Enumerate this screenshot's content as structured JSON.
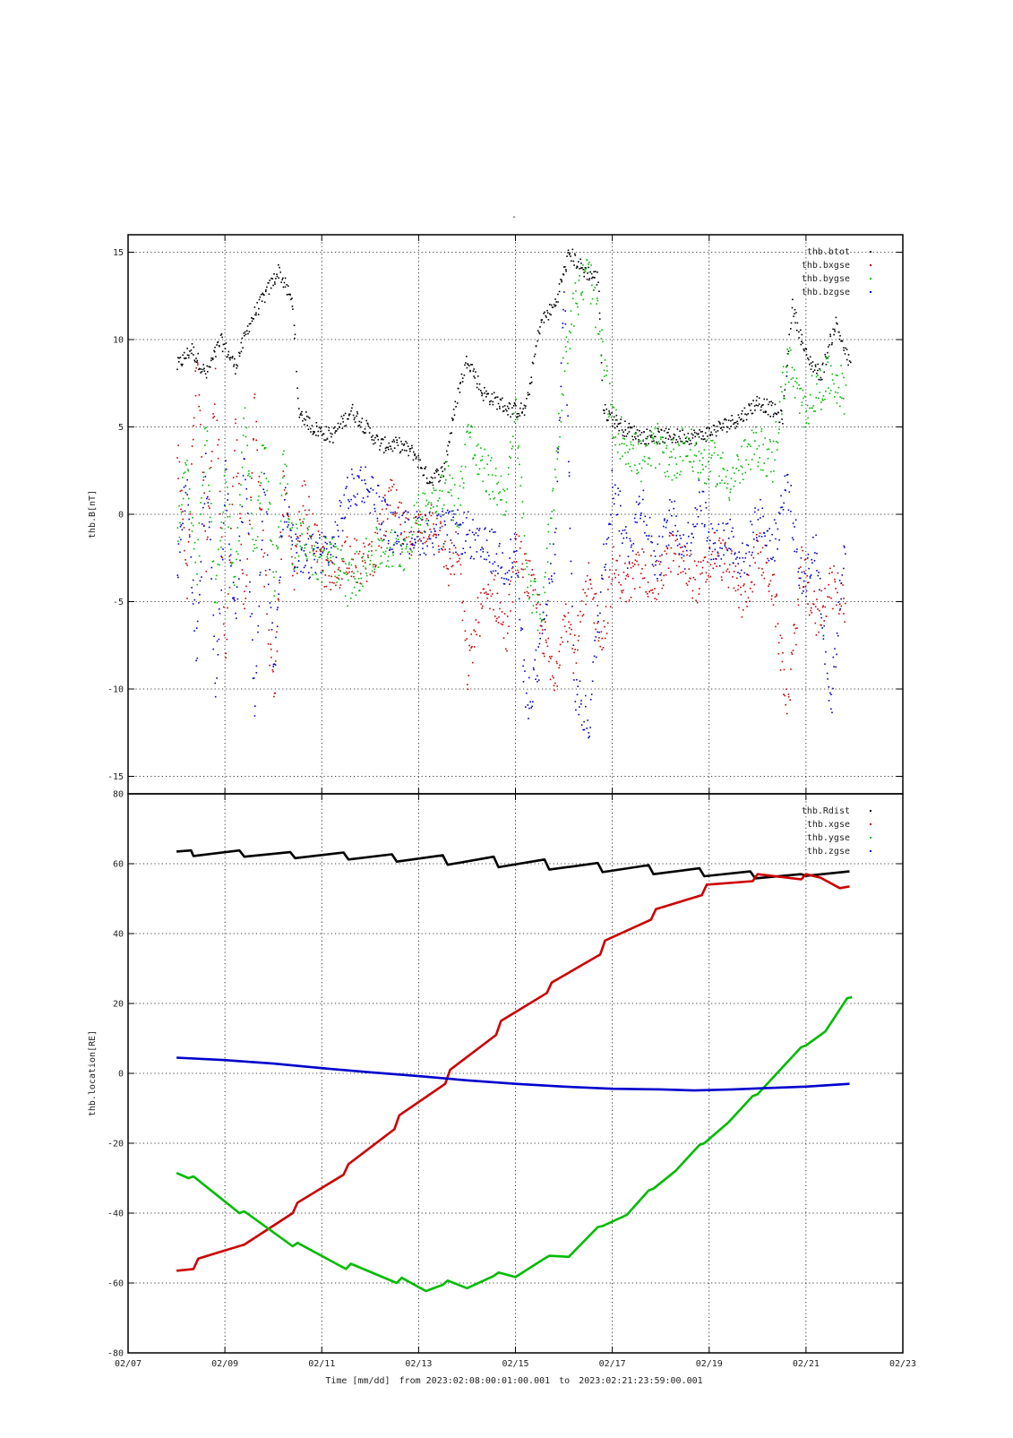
{
  "page_title": "-",
  "footer": {
    "time_label": "Time [mm/dd]",
    "from_label": "from",
    "start": "2023:02:08:00:01:00.001",
    "to_label": "to",
    "end": "2023:02:21:23:59:00.001"
  },
  "chart_data": [
    {
      "type": "scatter",
      "ylabel": "thb.B[nT]",
      "xlim": [
        "02/07",
        "02/23"
      ],
      "ylim": [
        -16,
        16
      ],
      "yticks": [
        -15,
        -10,
        -5,
        0,
        5,
        10,
        15
      ],
      "grid": true,
      "legend_position": "top-right",
      "series": [
        {
          "name": "thb.btot",
          "color": "#000000",
          "x": [
            8.0,
            8.3,
            8.6,
            8.9,
            9.2,
            9.5,
            9.8,
            10.1,
            10.4,
            10.5,
            10.8,
            11.2,
            11.6,
            11.9,
            12.2,
            12.6,
            12.9,
            13.2,
            13.5,
            13.8,
            14.0,
            14.3,
            14.6,
            14.9,
            15.2,
            15.5,
            15.8,
            16.1,
            16.4,
            16.7,
            16.8,
            17.2,
            17.6,
            18.0,
            18.4,
            18.8,
            19.2,
            19.6,
            20.0,
            20.3,
            20.5,
            20.7,
            21.0,
            21.3,
            21.6,
            21.9
          ],
          "y": [
            8.5,
            9.5,
            8,
            10,
            8.5,
            11,
            12.5,
            14,
            12,
            6,
            5,
            4.5,
            6,
            5,
            4,
            4,
            3.5,
            2,
            2.5,
            7,
            9,
            7,
            6.5,
            6,
            6,
            11,
            12,
            15,
            14,
            13.5,
            6,
            5,
            4.5,
            4.5,
            4.5,
            4.5,
            5,
            5.5,
            6.5,
            6,
            5.5,
            12,
            9,
            8,
            11,
            8.5
          ]
        },
        {
          "name": "thb.bxgse",
          "color": "#cc0000",
          "x": [
            8.0,
            8.2,
            8.4,
            8.6,
            8.8,
            9.0,
            9.2,
            9.4,
            9.6,
            9.8,
            10.0,
            10.2,
            10.4,
            10.6,
            10.9,
            11.2,
            11.5,
            11.8,
            12.1,
            12.4,
            12.7,
            13.0,
            13.3,
            13.6,
            13.8,
            14.0,
            14.2,
            14.5,
            14.8,
            15.0,
            15.3,
            15.5,
            15.8,
            16.0,
            16.2,
            16.5,
            16.8,
            17.0,
            17.3,
            17.6,
            17.9,
            18.2,
            18.5,
            18.8,
            19.1,
            19.4,
            19.7,
            20.0,
            20.3,
            20.6,
            20.9,
            21.2,
            21.5,
            21.8
          ],
          "y": [
            4,
            -4,
            9,
            -2,
            8,
            -9,
            5,
            -6,
            7,
            -3,
            -11,
            2,
            -4,
            1,
            -2,
            -4,
            -2,
            -3,
            -2,
            1,
            -1,
            -1,
            0,
            -3,
            -2,
            -9,
            -6,
            -4,
            -7,
            -2,
            -4,
            -6,
            -10,
            -5,
            -8,
            -4,
            -7,
            -3,
            -4,
            -3,
            -4,
            -2,
            -3,
            -4,
            -2,
            -3,
            -5,
            -2,
            -4,
            -11,
            -3,
            -6,
            -4,
            -5
          ]
        },
        {
          "name": "thb.bygse",
          "color": "#00bb00",
          "x": [
            8.0,
            8.2,
            8.4,
            8.6,
            8.8,
            9.0,
            9.2,
            9.4,
            9.6,
            9.8,
            10.0,
            10.2,
            10.4,
            10.6,
            10.9,
            11.2,
            11.5,
            11.8,
            12.1,
            12.4,
            12.7,
            13.0,
            13.3,
            13.6,
            13.8,
            14.0,
            14.2,
            14.5,
            14.8,
            15.0,
            15.2,
            15.5,
            15.8,
            16.0,
            16.2,
            16.5,
            16.8,
            17.0,
            17.3,
            17.6,
            17.9,
            18.2,
            18.5,
            18.8,
            19.1,
            19.4,
            19.7,
            20.0,
            20.3,
            20.6,
            20.9,
            21.2,
            21.5,
            21.8
          ],
          "y": [
            -1,
            3,
            -4,
            5,
            -5,
            2,
            -4,
            6,
            -3,
            5,
            -4,
            3,
            -2,
            -1,
            -3,
            -2,
            -4,
            -3,
            -2,
            -2,
            -2,
            0,
            1,
            2,
            0,
            5,
            3,
            2,
            1,
            6,
            -3,
            -6,
            2,
            9,
            12,
            14,
            9,
            5,
            4,
            3,
            4,
            3,
            4,
            3,
            3,
            2,
            3,
            4,
            3,
            9,
            6,
            7,
            8,
            7
          ]
        },
        {
          "name": "thb.bzgse",
          "color": "#0000cc",
          "x": [
            8.0,
            8.2,
            8.4,
            8.6,
            8.8,
            9.0,
            9.2,
            9.4,
            9.6,
            9.8,
            10.0,
            10.2,
            10.4,
            10.6,
            10.9,
            11.2,
            11.5,
            11.8,
            12.1,
            12.4,
            12.7,
            13.0,
            13.3,
            13.6,
            13.8,
            14.0,
            14.2,
            14.5,
            14.8,
            15.0,
            15.2,
            15.5,
            15.8,
            16.0,
            16.2,
            16.5,
            16.8,
            17.0,
            17.3,
            17.6,
            17.9,
            18.2,
            18.5,
            18.8,
            19.1,
            19.4,
            19.7,
            20.0,
            20.3,
            20.6,
            20.9,
            21.2,
            21.5,
            21.8
          ],
          "y": [
            -3,
            2,
            -8,
            3,
            -10,
            2,
            -6,
            3,
            -11,
            2,
            -9,
            1,
            -2,
            -3,
            -2,
            -2,
            1,
            2,
            1,
            -1,
            -1,
            -1,
            -1,
            -1,
            -1,
            -1,
            -2,
            -2,
            -3,
            -2,
            -11,
            -8,
            -2,
            13,
            -10,
            -12,
            -3,
            2,
            -2,
            1,
            -3,
            0,
            -2,
            1,
            -2,
            -1,
            -3,
            0,
            -2,
            2,
            -4,
            -2,
            -11,
            -1
          ]
        }
      ]
    },
    {
      "type": "line",
      "ylabel": "thb.location[RE]",
      "xlim": [
        "02/07",
        "02/23"
      ],
      "ylim": [
        -80,
        80
      ],
      "yticks": [
        -80,
        -60,
        -40,
        -20,
        0,
        20,
        40,
        60,
        80
      ],
      "xticks": [
        "02/07",
        "02/09",
        "02/11",
        "02/13",
        "02/15",
        "02/17",
        "02/19",
        "02/21",
        "02/23"
      ],
      "grid": true,
      "legend_position": "top-right",
      "series": [
        {
          "name": "thb.Rdist",
          "color": "#000000",
          "x": [
            8.0,
            8.3,
            8.35,
            9.3,
            9.4,
            10.35,
            10.45,
            11.45,
            11.55,
            12.45,
            12.55,
            13.5,
            13.6,
            14.55,
            14.65,
            15.6,
            15.7,
            16.7,
            16.8,
            17.75,
            17.85,
            18.8,
            18.9,
            19.85,
            19.95,
            20.9,
            21.0,
            21.9
          ],
          "y": [
            63.5,
            63.8,
            62.2,
            63.8,
            62,
            63.3,
            61.6,
            63.2,
            61.2,
            62.7,
            60.6,
            62.4,
            59.7,
            62,
            59.0,
            61.2,
            58.3,
            60.2,
            57.6,
            59.6,
            57,
            58.7,
            56.4,
            57.8,
            55.8,
            57,
            56.5,
            57.8
          ]
        },
        {
          "name": "thb.xgse",
          "color": "#cc0000",
          "x": [
            8.0,
            8.35,
            8.45,
            9.4,
            10.4,
            10.5,
            11.45,
            11.55,
            12.5,
            12.6,
            13.55,
            13.65,
            14.6,
            14.7,
            15.65,
            15.75,
            16.75,
            16.85,
            17.8,
            17.9,
            18.85,
            18.95,
            19.9,
            20.0,
            20.9,
            21.0,
            21.3,
            21.7,
            21.9
          ],
          "y": [
            -56.5,
            -56,
            -53,
            -49,
            -40,
            -37,
            -29,
            -26,
            -16,
            -12,
            -3,
            1,
            11,
            15,
            23,
            26,
            34,
            38,
            44,
            47,
            51,
            54,
            55,
            57,
            55.5,
            57,
            56,
            53,
            53.5
          ]
        },
        {
          "name": "thb.ygse",
          "color": "#00bb00",
          "x": [
            8.0,
            8.25,
            8.35,
            9.3,
            9.4,
            10.4,
            10.5,
            11.5,
            11.6,
            12.55,
            12.65,
            13.15,
            13.5,
            13.6,
            14.0,
            14.55,
            14.65,
            15.0,
            15.6,
            15.7,
            16.1,
            16.7,
            16.8,
            17.3,
            17.75,
            17.85,
            18.3,
            18.8,
            18.9,
            19.4,
            19.9,
            20.0,
            20.4,
            20.9,
            21.0,
            21.4,
            21.85,
            21.95
          ],
          "y": [
            -28.5,
            -30,
            -29.5,
            -40,
            -39.5,
            -49.5,
            -48.5,
            -56,
            -54.5,
            -60,
            -58.5,
            -62.3,
            -60.5,
            -59.3,
            -61.5,
            -58,
            -57,
            -58.3,
            -53,
            -52.2,
            -52.5,
            -44,
            -43.7,
            -40.5,
            -33.5,
            -33,
            -28,
            -20.5,
            -20,
            -14,
            -6.5,
            -6,
            0,
            7.5,
            8,
            12,
            21.5,
            21.8
          ]
        },
        {
          "name": "thb.zgse",
          "color": "#0000cc",
          "x": [
            8.0,
            9.0,
            10.0,
            11.0,
            12.0,
            13.0,
            14.0,
            15.0,
            16.0,
            17.0,
            18.0,
            18.7,
            19.5,
            20.0,
            21.0,
            21.9
          ],
          "y": [
            4.5,
            3.8,
            2.8,
            1.5,
            0.3,
            -0.8,
            -2,
            -3,
            -3.8,
            -4.4,
            -4.6,
            -4.9,
            -4.6,
            -4.3,
            -3.8,
            -3
          ]
        }
      ]
    }
  ]
}
